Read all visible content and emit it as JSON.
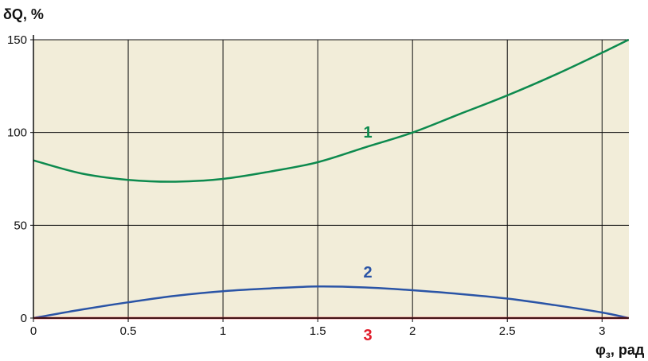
{
  "chart_data": {
    "type": "line",
    "ylabel": "δQ, %",
    "xlabel": {
      "symbol": "φ",
      "subscript": "з",
      "unit": ", рад"
    },
    "xlim": [
      0,
      3.14159
    ],
    "ylim": [
      0,
      150
    ],
    "x_ticks": [
      0,
      0.5,
      1,
      1.5,
      2,
      2.5,
      3
    ],
    "x_tick_labels": [
      "0",
      "0.5",
      "1",
      "1.5",
      "2",
      "2.5",
      "3"
    ],
    "y_ticks": [
      0,
      50,
      100,
      150
    ],
    "y_tick_labels": [
      "0",
      "50",
      "100",
      "150"
    ],
    "grid": true,
    "plot_background": "#f2edd9",
    "series": [
      {
        "name": "1",
        "color": "#0d8a4e",
        "x": [
          0,
          0.25,
          0.5,
          0.75,
          1.0,
          1.25,
          1.5,
          1.75,
          2.0,
          2.25,
          2.5,
          2.75,
          3.0,
          3.14
        ],
        "y": [
          85,
          78,
          74.5,
          73.5,
          75,
          79,
          84,
          92,
          100,
          110,
          120,
          131,
          143,
          150
        ]
      },
      {
        "name": "2",
        "color": "#2a54a6",
        "x": [
          0,
          0.25,
          0.5,
          0.75,
          1.0,
          1.25,
          1.5,
          1.75,
          2.0,
          2.25,
          2.5,
          2.75,
          3.0,
          3.14
        ],
        "y": [
          0,
          4.5,
          8.5,
          12,
          14.5,
          16,
          17,
          16.5,
          15,
          13,
          10.5,
          7,
          3,
          0
        ]
      },
      {
        "name": "3",
        "color": "#e11c2a",
        "x": [
          0,
          3.14
        ],
        "y": [
          0,
          0
        ]
      }
    ],
    "curve_labels": [
      {
        "text": "1",
        "x": 1.57,
        "y": 97,
        "color": "#0d8a4e"
      },
      {
        "text": "2",
        "x": 1.57,
        "y": 24,
        "color": "#2a54a6"
      },
      {
        "text": "3",
        "x": 1.57,
        "y": -8,
        "color": "#e11c2a"
      }
    ]
  }
}
